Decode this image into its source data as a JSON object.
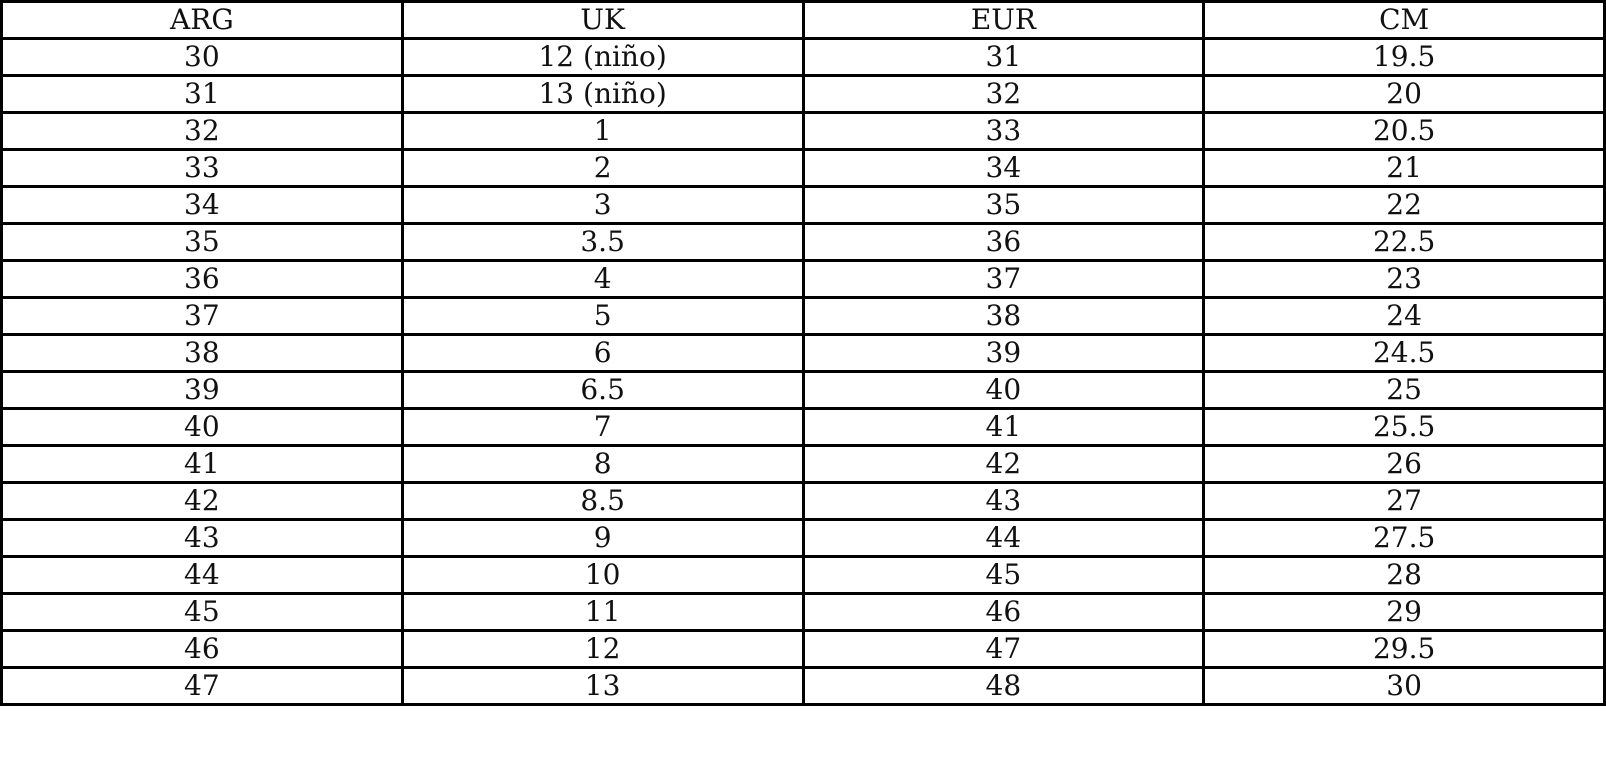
{
  "table": {
    "headers": [
      "ARG",
      "UK",
      "EUR",
      "CM"
    ],
    "rows": [
      [
        "30",
        "12 (niño)",
        "31",
        "19.5"
      ],
      [
        "31",
        "13 (niño)",
        "32",
        "20"
      ],
      [
        "32",
        "1",
        "33",
        "20.5"
      ],
      [
        "33",
        "2",
        "34",
        "21"
      ],
      [
        "34",
        "3",
        "35",
        "22"
      ],
      [
        "35",
        "3.5",
        "36",
        "22.5"
      ],
      [
        "36",
        "4",
        "37",
        "23"
      ],
      [
        "37",
        "5",
        "38",
        "24"
      ],
      [
        "38",
        "6",
        "39",
        "24.5"
      ],
      [
        "39",
        "6.5",
        "40",
        "25"
      ],
      [
        "40",
        "7",
        "41",
        "25.5"
      ],
      [
        "41",
        "8",
        "42",
        "26"
      ],
      [
        "42",
        "8.5",
        "43",
        "27"
      ],
      [
        "43",
        "9",
        "44",
        "27.5"
      ],
      [
        "44",
        "10",
        "45",
        "28"
      ],
      [
        "45",
        "11",
        "46",
        "29"
      ],
      [
        "46",
        "12",
        "47",
        "29.5"
      ],
      [
        "47",
        "13",
        "48",
        "30"
      ]
    ]
  }
}
